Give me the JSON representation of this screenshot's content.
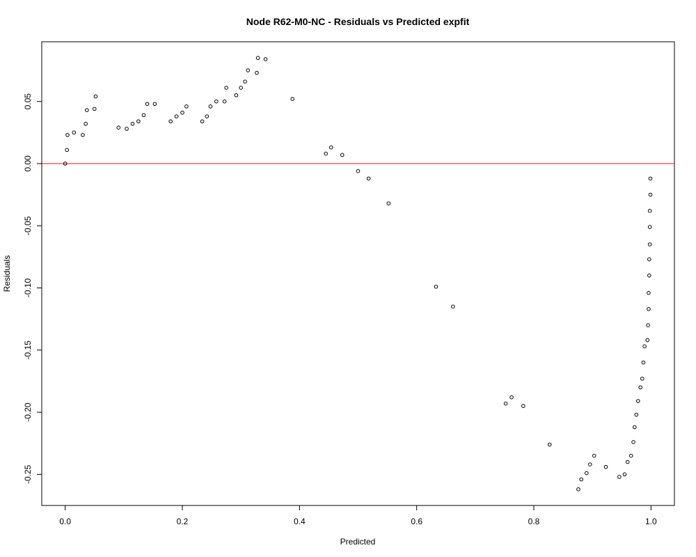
{
  "chart_data": {
    "type": "scatter",
    "title": "Node R62-M0-NC - Residuals vs Predicted expfit",
    "xlabel": "Predicted",
    "ylabel": "Residuals",
    "xlim": [
      -0.04,
      1.04
    ],
    "ylim": [
      -0.275,
      0.098
    ],
    "x_ticks": [
      0.0,
      0.2,
      0.4,
      0.6,
      0.8,
      1.0
    ],
    "x_tick_labels": [
      "0.0",
      "0.2",
      "0.4",
      "0.6",
      "0.8",
      "1.0"
    ],
    "y_ticks": [
      0.05,
      0.0,
      -0.05,
      -0.1,
      -0.15,
      -0.2,
      -0.25
    ],
    "y_tick_labels": [
      "0.05",
      "0.00",
      "-0.05",
      "-0.10",
      "-0.15",
      "-0.20",
      "-0.25"
    ],
    "reference_line": {
      "y": 0.0,
      "color": "#e41a1c"
    },
    "point_color": "#000000",
    "grid": false,
    "points": [
      [
        0.0,
        0.0
      ],
      [
        0.003,
        0.011
      ],
      [
        0.004,
        0.023
      ],
      [
        0.015,
        0.025
      ],
      [
        0.03,
        0.023
      ],
      [
        0.035,
        0.032
      ],
      [
        0.037,
        0.043
      ],
      [
        0.05,
        0.044
      ],
      [
        0.052,
        0.054
      ],
      [
        0.091,
        0.029
      ],
      [
        0.105,
        0.028
      ],
      [
        0.115,
        0.032
      ],
      [
        0.125,
        0.034
      ],
      [
        0.134,
        0.039
      ],
      [
        0.14,
        0.048
      ],
      [
        0.153,
        0.048
      ],
      [
        0.18,
        0.034
      ],
      [
        0.19,
        0.038
      ],
      [
        0.2,
        0.041
      ],
      [
        0.207,
        0.046
      ],
      [
        0.234,
        0.034
      ],
      [
        0.242,
        0.038
      ],
      [
        0.248,
        0.046
      ],
      [
        0.258,
        0.05
      ],
      [
        0.272,
        0.05
      ],
      [
        0.275,
        0.061
      ],
      [
        0.292,
        0.055
      ],
      [
        0.3,
        0.061
      ],
      [
        0.307,
        0.066
      ],
      [
        0.312,
        0.075
      ],
      [
        0.327,
        0.073
      ],
      [
        0.329,
        0.085
      ],
      [
        0.342,
        0.084
      ],
      [
        0.388,
        0.052
      ],
      [
        0.445,
        0.008
      ],
      [
        0.454,
        0.013
      ],
      [
        0.473,
        0.007
      ],
      [
        0.5,
        -0.006
      ],
      [
        0.518,
        -0.012
      ],
      [
        0.552,
        -0.032
      ],
      [
        0.633,
        -0.099
      ],
      [
        0.662,
        -0.115
      ],
      [
        0.752,
        -0.193
      ],
      [
        0.762,
        -0.188
      ],
      [
        0.782,
        -0.195
      ],
      [
        0.827,
        -0.226
      ],
      [
        0.876,
        -0.262
      ],
      [
        0.881,
        -0.254
      ],
      [
        0.89,
        -0.249
      ],
      [
        0.896,
        -0.242
      ],
      [
        0.903,
        -0.235
      ],
      [
        0.923,
        -0.244
      ],
      [
        0.946,
        -0.252
      ],
      [
        0.955,
        -0.25
      ],
      [
        0.96,
        -0.24
      ],
      [
        0.966,
        -0.235
      ],
      [
        0.97,
        -0.224
      ],
      [
        0.972,
        -0.212
      ],
      [
        0.975,
        -0.202
      ],
      [
        0.978,
        -0.191
      ],
      [
        0.982,
        -0.18
      ],
      [
        0.985,
        -0.173
      ],
      [
        0.987,
        -0.16
      ],
      [
        0.989,
        -0.147
      ],
      [
        0.994,
        -0.142
      ],
      [
        0.995,
        -0.13
      ],
      [
        0.996,
        -0.117
      ],
      [
        0.996,
        -0.104
      ],
      [
        0.997,
        -0.09
      ],
      [
        0.997,
        -0.077
      ],
      [
        0.998,
        -0.065
      ],
      [
        0.998,
        -0.051
      ],
      [
        0.998,
        -0.038
      ],
      [
        0.999,
        -0.025
      ],
      [
        0.999,
        -0.012
      ]
    ]
  }
}
